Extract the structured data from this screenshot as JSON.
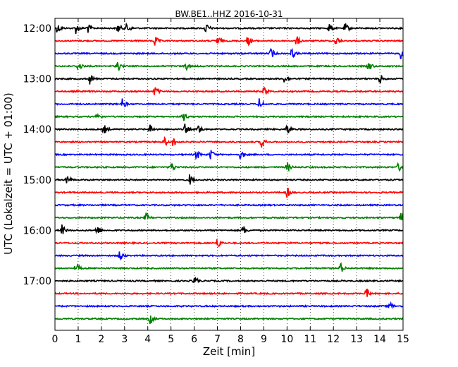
{
  "chart_data": {
    "type": "line",
    "title": "BW.BE1..HHZ 2016-10-31",
    "xlabel": "Zeit  [min]",
    "ylabel": "UTC (Lokalzeit = UTC + 01:00)",
    "xlim": [
      0,
      15
    ],
    "x_ticks": [
      "0",
      "1",
      "2",
      "3",
      "4",
      "5",
      "6",
      "7",
      "8",
      "9",
      "10",
      "11",
      "12",
      "13",
      "14",
      "15"
    ],
    "y_tick_labels": [
      "12:00",
      "13:00",
      "14:00",
      "15:00",
      "16:00",
      "17:00"
    ],
    "trace_start_times": [
      "12:00",
      "12:15",
      "12:30",
      "12:45",
      "13:00",
      "13:15",
      "13:30",
      "13:45",
      "14:00",
      "14:15",
      "14:30",
      "14:45",
      "15:00",
      "15:15",
      "15:30",
      "15:45",
      "16:00",
      "16:15",
      "16:30",
      "16:45",
      "17:00",
      "17:15",
      "17:30",
      "17:45"
    ],
    "trace_colors": [
      "#000000",
      "#ff0000",
      "#0000ff",
      "#008000"
    ],
    "grid": "vertical dotted",
    "event_spikes_min": [
      [
        0.1,
        0.9,
        1.4,
        2.7,
        3.1,
        6.5,
        11.8,
        12.5
      ],
      [
        4.3,
        7.0,
        8.3,
        10.4,
        12.1
      ],
      [
        9.3,
        10.2,
        14.9
      ],
      [
        1.0,
        2.7,
        5.6,
        13.5
      ],
      [
        1.5,
        9.9,
        14.0
      ],
      [
        4.3,
        9.0
      ],
      [
        2.9,
        8.8
      ],
      [
        1.8,
        5.5
      ],
      [
        2.1,
        4.1,
        5.6,
        6.2,
        10.0
      ],
      [
        4.7,
        5.1,
        8.9
      ],
      [
        6.1,
        6.7,
        8.0
      ],
      [
        5.0,
        10.0,
        14.8
      ],
      [
        0.5,
        5.8
      ],
      [
        10.0
      ],
      [],
      [
        3.9,
        14.9
      ],
      [
        0.3,
        1.8,
        8.1
      ],
      [
        7.0
      ],
      [
        2.8
      ],
      [
        0.9,
        12.3
      ],
      [
        6.0
      ],
      [
        13.4
      ],
      [
        14.4
      ],
      [
        4.1
      ]
    ]
  }
}
